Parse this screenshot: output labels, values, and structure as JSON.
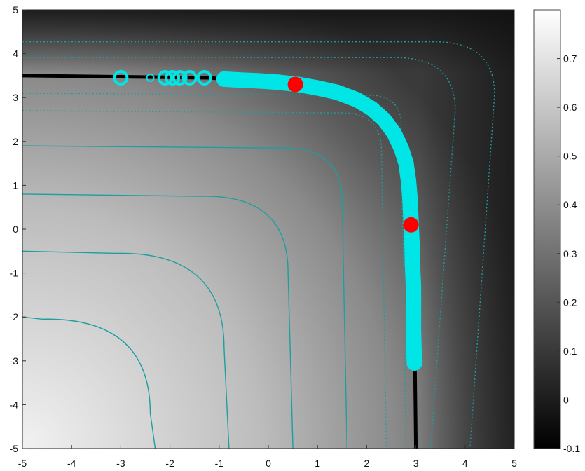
{
  "chart_data": {
    "type": "heatmap",
    "title": "",
    "xlabel": "",
    "ylabel": "",
    "xlim": [
      -5,
      5
    ],
    "ylim": [
      -5,
      5
    ],
    "x_ticks": [
      "-5",
      "-4",
      "-3",
      "-2",
      "-1",
      "0",
      "1",
      "2",
      "3",
      "4",
      "5"
    ],
    "y_ticks": [
      "-5",
      "-4",
      "-3",
      "-2",
      "-1",
      "0",
      "1",
      "2",
      "3",
      "4",
      "5"
    ],
    "colorbar": {
      "colormap": "gray",
      "range": [
        -0.1,
        0.8
      ],
      "ticks": [
        "-0.1",
        "0",
        "0.1",
        "0.2",
        "0.3",
        "0.4",
        "0.5",
        "0.6",
        "0.7"
      ]
    },
    "surface_function": "value rises with distance from the black ridge along x=3 and y=3.5; brightest at lower-left",
    "contour_levels": [
      0.1,
      0.2,
      0.3,
      0.4,
      0.5,
      0.6
    ],
    "contour_color": "#1e9e9e",
    "ridge_color": "#000000",
    "path_color": "#00e6e6",
    "marker_color": "#ff0000",
    "ridge_line": [
      {
        "x": -5,
        "y": 3.5
      },
      {
        "x": -1.2,
        "y": 3.45
      },
      {
        "x": 0.5,
        "y": 3.3
      },
      {
        "x": 1.6,
        "y": 3.05
      },
      {
        "x": 2.3,
        "y": 2.6
      },
      {
        "x": 2.7,
        "y": 2.0
      },
      {
        "x": 2.85,
        "y": 1.2
      },
      {
        "x": 2.95,
        "y": 0
      },
      {
        "x": 3.0,
        "y": -5
      }
    ],
    "optimizer_path": [
      {
        "x": -3.0,
        "y": 3.45
      },
      {
        "x": -2.4,
        "y": 3.45
      },
      {
        "x": -2.1,
        "y": 3.45
      },
      {
        "x": -1.95,
        "y": 3.45
      },
      {
        "x": -1.8,
        "y": 3.45
      },
      {
        "x": -1.6,
        "y": 3.45
      },
      {
        "x": -1.3,
        "y": 3.45
      },
      {
        "x": -0.9,
        "y": 3.42
      },
      {
        "x": -0.6,
        "y": 3.4
      },
      {
        "x": -0.2,
        "y": 3.38
      },
      {
        "x": 0.2,
        "y": 3.35
      },
      {
        "x": 0.6,
        "y": 3.3
      },
      {
        "x": 1.0,
        "y": 3.22
      },
      {
        "x": 1.4,
        "y": 3.12
      },
      {
        "x": 1.8,
        "y": 2.95
      },
      {
        "x": 2.1,
        "y": 2.75
      },
      {
        "x": 2.35,
        "y": 2.5
      },
      {
        "x": 2.55,
        "y": 2.2
      },
      {
        "x": 2.7,
        "y": 1.85
      },
      {
        "x": 2.8,
        "y": 1.5
      },
      {
        "x": 2.85,
        "y": 1.1
      },
      {
        "x": 2.88,
        "y": 0.7
      },
      {
        "x": 2.9,
        "y": 0.2
      },
      {
        "x": 2.92,
        "y": -0.3
      },
      {
        "x": 2.93,
        "y": -0.8
      },
      {
        "x": 2.95,
        "y": -1.3
      },
      {
        "x": 2.95,
        "y": -1.8
      },
      {
        "x": 2.95,
        "y": -2.3
      },
      {
        "x": 2.96,
        "y": -2.7
      },
      {
        "x": 2.97,
        "y": -3.05
      }
    ],
    "red_points": [
      {
        "x": 0.55,
        "y": 3.3
      },
      {
        "x": 2.9,
        "y": 0.1
      }
    ]
  }
}
